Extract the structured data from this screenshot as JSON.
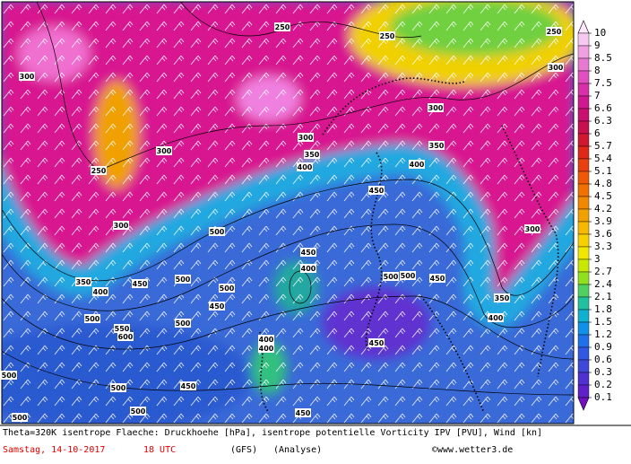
{
  "map": {
    "contour_labels": [
      250,
      250,
      250,
      300,
      300,
      250,
      300,
      300,
      300,
      350,
      400,
      350,
      400,
      450,
      300,
      500,
      350,
      400,
      450,
      500,
      500,
      450,
      450,
      400,
      500,
      500,
      450,
      350,
      300,
      400,
      500,
      550,
      600,
      500,
      400,
      400,
      450,
      500,
      500,
      450,
      500,
      450,
      500
    ],
    "colorbar": {
      "levels": [
        10,
        9,
        8.5,
        8,
        7.5,
        7,
        6.6,
        6.3,
        6,
        5.7,
        5.4,
        5.1,
        4.8,
        4.5,
        4.2,
        3.9,
        3.6,
        3.3,
        3,
        2.7,
        2.4,
        2.1,
        1.8,
        1.5,
        1.2,
        0.9,
        0.6,
        0.3,
        0.2,
        0.1
      ],
      "colors": [
        "#ffe8ff",
        "#f7c8f0",
        "#f0a0e0",
        "#e878d0",
        "#e050c0",
        "#d830a8",
        "#d01890",
        "#c81070",
        "#c81050",
        "#d01830",
        "#e02818",
        "#e84010",
        "#f05808",
        "#f07000",
        "#f08800",
        "#f0a000",
        "#f8b800",
        "#f8d000",
        "#f0e800",
        "#c8e800",
        "#90e020",
        "#50d060",
        "#20c0a0",
        "#10b0d0",
        "#1090e8",
        "#2070e8",
        "#3058e0",
        "#4048d8",
        "#5030d0",
        "#6020c8",
        "#7010c0"
      ]
    }
  },
  "footer": {
    "description": "Theta=320K isentrope Flaeche: Druckhoehe [hPa], isentrope potentielle Vorticity IPV [PVU], Wind [kn]",
    "date": "Samstag, 14-10-2017",
    "time": "18 UTC",
    "model": "(GFS)",
    "run": "(Analyse)",
    "credit": "©www.wetter3.de"
  }
}
